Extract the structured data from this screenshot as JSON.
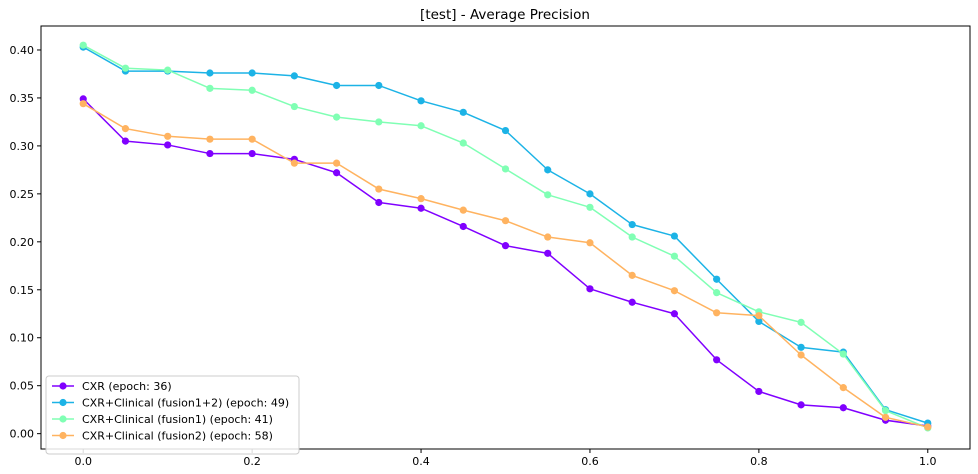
{
  "chart_data": {
    "type": "line",
    "title": "[test] - Average Precision",
    "xlabel": "",
    "ylabel": "",
    "xlim": [
      -0.05,
      1.05
    ],
    "ylim": [
      -0.016,
      0.425
    ],
    "xticks": [
      "0.0",
      "0.2",
      "0.4",
      "0.6",
      "0.8",
      "1.0"
    ],
    "yticks": [
      "0.00",
      "0.05",
      "0.10",
      "0.15",
      "0.20",
      "0.25",
      "0.30",
      "0.35",
      "0.40"
    ],
    "grid": false,
    "legend_position": "lower-left",
    "x": [
      0.0,
      0.05,
      0.1,
      0.15,
      0.2,
      0.25,
      0.3,
      0.35,
      0.4,
      0.45,
      0.5,
      0.55,
      0.6,
      0.65,
      0.7,
      0.75,
      0.8,
      0.85,
      0.9,
      0.95,
      1.0
    ],
    "series": [
      {
        "name": "CXR (epoch: 36)",
        "color": "#8000ff",
        "values": [
          0.349,
          0.305,
          0.301,
          0.292,
          0.292,
          0.286,
          0.272,
          0.241,
          0.235,
          0.216,
          0.196,
          0.188,
          0.151,
          0.137,
          0.125,
          0.077,
          0.044,
          0.03,
          0.027,
          0.014,
          0.008
        ]
      },
      {
        "name": "CXR+Clinical (fusion1+2) (epoch: 49)",
        "color": "#1cb3e6",
        "values": [
          0.403,
          0.378,
          0.378,
          0.376,
          0.376,
          0.373,
          0.363,
          0.363,
          0.347,
          0.335,
          0.316,
          0.275,
          0.25,
          0.218,
          0.206,
          0.161,
          0.117,
          0.09,
          0.085,
          0.025,
          0.011
        ]
      },
      {
        "name": "CXR+Clinical (fusion1) (epoch: 41)",
        "color": "#80ffb4",
        "values": [
          0.405,
          0.381,
          0.379,
          0.36,
          0.358,
          0.341,
          0.33,
          0.325,
          0.321,
          0.303,
          0.276,
          0.249,
          0.236,
          0.205,
          0.185,
          0.147,
          0.127,
          0.116,
          0.083,
          0.024,
          0.006
        ]
      },
      {
        "name": "CXR+Clinical (fusion2) (epoch: 58)",
        "color": "#ffb360",
        "values": [
          0.344,
          0.318,
          0.31,
          0.307,
          0.307,
          0.282,
          0.282,
          0.255,
          0.245,
          0.233,
          0.222,
          0.205,
          0.199,
          0.165,
          0.149,
          0.126,
          0.123,
          0.082,
          0.048,
          0.017,
          0.007
        ]
      }
    ]
  }
}
